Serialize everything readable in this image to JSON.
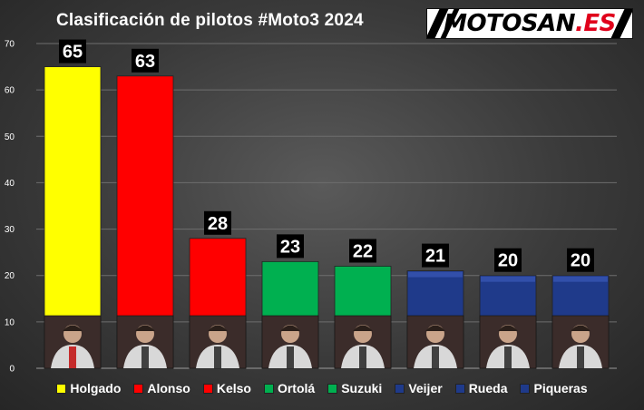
{
  "title": "Clasificación de pilotos #Moto3 2024",
  "logo": {
    "text_main": "MOTOSAN",
    "text_suffix": ".ES"
  },
  "chart_data": {
    "type": "bar",
    "title": "Clasificación de pilotos #Moto3 2024",
    "xlabel": "",
    "ylabel": "",
    "categories": [
      "Holgado",
      "Alonso",
      "Kelso",
      "Ortolá",
      "Suzuki",
      "Veijer",
      "Rueda",
      "Piqueras"
    ],
    "values": [
      65,
      63,
      28,
      23,
      22,
      21,
      20,
      20
    ],
    "colors": [
      "#ffff00",
      "#ff0000",
      "#ff0000",
      "#00b050",
      "#00b050",
      "#1f3a8a",
      "#1f3a8a",
      "#1f3a8a"
    ],
    "ylim": [
      0,
      70
    ],
    "yticks": [
      0,
      10,
      20,
      30,
      40,
      50,
      60,
      70
    ],
    "grid": true,
    "legend": "bottom",
    "data_labels": true
  }
}
